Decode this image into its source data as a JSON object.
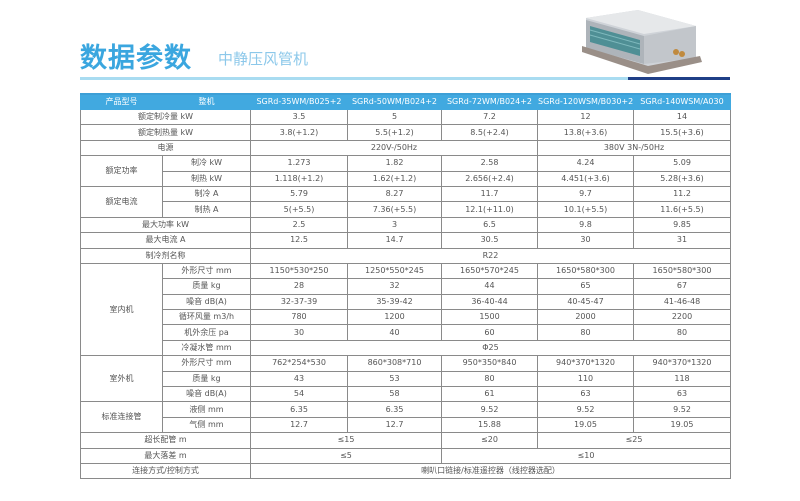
{
  "header": {
    "title": "数据参数",
    "subtitle": "中静压风管机"
  },
  "colors": {
    "accent": "#41a9e0",
    "dark_bar": "#1f3f87",
    "light_bar": "#a9dcf1"
  },
  "table": {
    "head": [
      "产品型号",
      "整机",
      "SGRd-35WM/B025+2",
      "SGRd-50WM/B024+2",
      "SGRd-72WM/B024+2",
      "SGRd-120WSM/B030+2",
      "SGRd-140WSM/A030"
    ],
    "rows": [
      {
        "label": "额定制冷量 kW",
        "cells": [
          {
            "v": "3.5"
          },
          {
            "v": "5"
          },
          {
            "v": "7.2"
          },
          {
            "v": "12"
          },
          {
            "v": "14"
          }
        ]
      },
      {
        "label": "额定制热量 kW",
        "cells": [
          {
            "v": "3.8(+1.2)"
          },
          {
            "v": "5.5(+1.2)"
          },
          {
            "v": "8.5(+2.4)"
          },
          {
            "v": "13.8(+3.6)"
          },
          {
            "v": "15.5(+3.6)"
          }
        ]
      },
      {
        "label": "电源",
        "cells": [
          {
            "v": "220V-/50Hz",
            "span": 3
          },
          {
            "v": "380V 3N-/50Hz",
            "span": 2
          }
        ]
      },
      {
        "group": "额定功率",
        "groupRows": 2,
        "label": "制冷 kW",
        "cells": [
          {
            "v": "1.273"
          },
          {
            "v": "1.82"
          },
          {
            "v": "2.58"
          },
          {
            "v": "4.24"
          },
          {
            "v": "5.09"
          }
        ]
      },
      {
        "label": "制热 kW",
        "sub": true,
        "cells": [
          {
            "v": "1.118(+1.2)"
          },
          {
            "v": "1.62(+1.2)"
          },
          {
            "v": "2.656(+2.4)"
          },
          {
            "v": "4.451(+3.6)"
          },
          {
            "v": "5.28(+3.6)"
          }
        ]
      },
      {
        "group": "额定电流",
        "groupRows": 2,
        "label": "制冷 A",
        "cells": [
          {
            "v": "5.79"
          },
          {
            "v": "8.27"
          },
          {
            "v": "11.7"
          },
          {
            "v": "9.7"
          },
          {
            "v": "11.2"
          }
        ]
      },
      {
        "label": "制热 A",
        "sub": true,
        "cells": [
          {
            "v": "5(+5.5)"
          },
          {
            "v": "7.36(+5.5)"
          },
          {
            "v": "12.1(+11.0)"
          },
          {
            "v": "10.1(+5.5)"
          },
          {
            "v": "11.6(+5.5)"
          }
        ]
      },
      {
        "label": "最大功率 kW",
        "cells": [
          {
            "v": "2.5"
          },
          {
            "v": "3"
          },
          {
            "v": "6.5"
          },
          {
            "v": "9.8"
          },
          {
            "v": "9.85"
          }
        ]
      },
      {
        "label": "最大电流 A",
        "cells": [
          {
            "v": "12.5"
          },
          {
            "v": "14.7"
          },
          {
            "v": "30.5"
          },
          {
            "v": "30"
          },
          {
            "v": "31"
          }
        ]
      },
      {
        "label": "制冷剂名称",
        "cells": [
          {
            "v": "R22",
            "span": 5
          }
        ]
      },
      {
        "group": "室内机",
        "groupRows": 6,
        "label": "外形尺寸 mm",
        "cells": [
          {
            "v": "1150*530*250"
          },
          {
            "v": "1250*550*245"
          },
          {
            "v": "1650*570*245"
          },
          {
            "v": "1650*580*300"
          },
          {
            "v": "1650*580*300"
          }
        ]
      },
      {
        "label": "质量 kg",
        "sub": true,
        "cells": [
          {
            "v": "28"
          },
          {
            "v": "32"
          },
          {
            "v": "44"
          },
          {
            "v": "65"
          },
          {
            "v": "67"
          }
        ]
      },
      {
        "label": "噪音 dB(A)",
        "sub": true,
        "cells": [
          {
            "v": "32-37-39"
          },
          {
            "v": "35-39-42"
          },
          {
            "v": "36-40-44"
          },
          {
            "v": "40-45-47"
          },
          {
            "v": "41-46-48"
          }
        ]
      },
      {
        "label": "循环风量 m3/h",
        "sub": true,
        "cells": [
          {
            "v": "780"
          },
          {
            "v": "1200"
          },
          {
            "v": "1500"
          },
          {
            "v": "2000"
          },
          {
            "v": "2200"
          }
        ]
      },
      {
        "label": "机外余压 pa",
        "sub": true,
        "cells": [
          {
            "v": "30"
          },
          {
            "v": "40"
          },
          {
            "v": "60"
          },
          {
            "v": "80"
          },
          {
            "v": "80"
          }
        ]
      },
      {
        "label": "冷凝水管 mm",
        "sub": true,
        "cells": [
          {
            "v": "Φ25",
            "span": 5
          }
        ]
      },
      {
        "group": "室外机",
        "groupRows": 3,
        "label": "外形尺寸 mm",
        "cells": [
          {
            "v": "762*254*530"
          },
          {
            "v": "860*308*710"
          },
          {
            "v": "950*350*840"
          },
          {
            "v": "940*370*1320"
          },
          {
            "v": "940*370*1320"
          }
        ]
      },
      {
        "label": "质量 kg",
        "sub": true,
        "cells": [
          {
            "v": "43"
          },
          {
            "v": "53"
          },
          {
            "v": "80"
          },
          {
            "v": "110"
          },
          {
            "v": "118"
          }
        ]
      },
      {
        "label": "噪音 dB(A)",
        "sub": true,
        "cells": [
          {
            "v": "54"
          },
          {
            "v": "58"
          },
          {
            "v": "61"
          },
          {
            "v": "63"
          },
          {
            "v": "63"
          }
        ]
      },
      {
        "group": "标准连接管",
        "groupRows": 2,
        "label": "液侧 mm",
        "cells": [
          {
            "v": "6.35"
          },
          {
            "v": "6.35"
          },
          {
            "v": "9.52"
          },
          {
            "v": "9.52"
          },
          {
            "v": "9.52"
          }
        ]
      },
      {
        "label": "气侧 mm",
        "sub": true,
        "cells": [
          {
            "v": "12.7"
          },
          {
            "v": "12.7"
          },
          {
            "v": "15.88"
          },
          {
            "v": "19.05"
          },
          {
            "v": "19.05"
          }
        ]
      },
      {
        "label": "超长配管 m",
        "cells": [
          {
            "v": "≤15",
            "span": 2
          },
          {
            "v": "≤20"
          },
          {
            "v": "≤25",
            "span": 2
          }
        ]
      },
      {
        "label": "最大落差 m",
        "cells": [
          {
            "v": "≤5",
            "span": 2
          },
          {
            "v": "≤10",
            "span": 3
          }
        ]
      },
      {
        "label": "连接方式/控制方式",
        "cells": [
          {
            "v": "喇叭口链接/标准遥控器（线控器选配）",
            "span": 5
          }
        ]
      }
    ]
  }
}
